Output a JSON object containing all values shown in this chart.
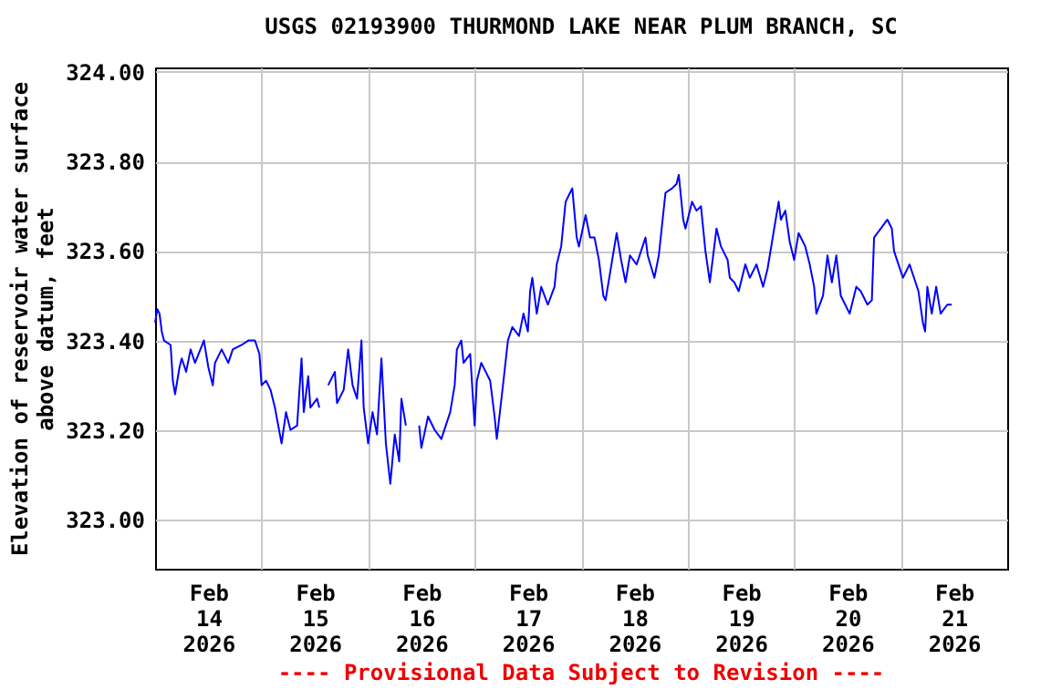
{
  "chart_data": {
    "type": "line",
    "title": "USGS 02193900 THURMOND LAKE NEAR PLUM BRANCH, SC",
    "ylabel": "Elevation of reservoir water surface\nabove datum, feet",
    "annotations": [
      "---- Provisional Data Subject to Revision ----"
    ],
    "x": [
      "2026-02-14T00:00",
      "2026-02-14T00:30",
      "2026-02-14T01:00",
      "2026-02-14T01:30",
      "2026-02-14T02:00",
      "2026-02-14T03:30",
      "2026-02-14T04:00",
      "2026-02-14T04:30",
      "2026-02-14T05:30",
      "2026-02-14T06:00",
      "2026-02-14T07:00",
      "2026-02-14T08:00",
      "2026-02-14T09:00",
      "2026-02-14T11:00",
      "2026-02-14T12:00",
      "2026-02-14T13:00",
      "2026-02-14T13:30",
      "2026-02-14T15:00",
      "2026-02-14T16:30",
      "2026-02-14T17:30",
      "2026-02-14T19:30",
      "2026-02-14T21:00",
      "2026-02-14T22:30",
      "2026-02-14T23:30",
      "2026-02-15T00:00",
      "2026-02-15T01:00",
      "2026-02-15T02:00",
      "2026-02-15T03:00",
      "2026-02-15T04:30",
      "2026-02-15T05:30",
      "2026-02-15T06:30",
      "2026-02-15T08:00",
      "2026-02-15T09:00",
      "2026-02-15T09:30",
      "2026-02-15T10:30",
      "2026-02-15T11:00",
      "2026-02-15T12:30",
      "2026-02-15T13:00",
      "2026-02-15T14:00",
      "2026-02-15T15:00",
      "2026-02-15T16:30",
      "2026-02-15T17:00",
      "2026-02-15T18:30",
      "2026-02-15T19:30",
      "2026-02-15T20:30",
      "2026-02-15T21:30",
      "2026-02-15T22:30",
      "2026-02-15T23:00",
      "2026-02-16T00:00",
      "2026-02-16T01:00",
      "2026-02-16T02:00",
      "2026-02-16T03:00",
      "2026-02-16T04:00",
      "2026-02-16T05:00",
      "2026-02-16T06:00",
      "2026-02-16T07:00",
      "2026-02-16T07:30",
      "2026-02-16T08:30",
      "2026-02-16T10:00",
      "2026-02-16T11:30",
      "2026-02-16T12:00",
      "2026-02-16T13:30",
      "2026-02-16T15:00",
      "2026-02-16T16:30",
      "2026-02-16T18:30",
      "2026-02-16T19:30",
      "2026-02-16T20:00",
      "2026-02-16T21:00",
      "2026-02-16T21:30",
      "2026-02-16T23:00",
      "2026-02-17T00:00",
      "2026-02-17T00:30",
      "2026-02-17T01:30",
      "2026-02-17T03:30",
      "2026-02-17T04:30",
      "2026-02-17T05:00",
      "2026-02-17T06:30",
      "2026-02-17T07:30",
      "2026-02-17T08:30",
      "2026-02-17T10:00",
      "2026-02-17T11:00",
      "2026-02-17T12:00",
      "2026-02-17T12:30",
      "2026-02-17T13:00",
      "2026-02-17T14:00",
      "2026-02-17T15:00",
      "2026-02-17T16:30",
      "2026-02-17T18:00",
      "2026-02-17T18:30",
      "2026-02-17T19:30",
      "2026-02-17T20:30",
      "2026-02-17T21:30",
      "2026-02-17T22:00",
      "2026-02-17T23:00",
      "2026-02-17T23:30",
      "2026-02-18T01:00",
      "2026-02-18T02:00",
      "2026-02-18T03:00",
      "2026-02-18T04:00",
      "2026-02-18T05:00",
      "2026-02-18T05:30",
      "2026-02-18T07:00",
      "2026-02-18T08:00",
      "2026-02-18T09:00",
      "2026-02-18T10:00",
      "2026-02-18T11:00",
      "2026-02-18T12:30",
      "2026-02-18T14:30",
      "2026-02-18T15:00",
      "2026-02-18T16:30",
      "2026-02-18T17:30",
      "2026-02-18T19:00",
      "2026-02-18T20:30",
      "2026-02-18T21:30",
      "2026-02-18T22:00",
      "2026-02-18T23:00",
      "2026-02-18T23:30",
      "2026-02-19T01:00",
      "2026-02-19T02:00",
      "2026-02-19T03:00",
      "2026-02-19T03:30",
      "2026-02-19T04:00",
      "2026-02-19T05:00",
      "2026-02-19T06:30",
      "2026-02-19T07:30",
      "2026-02-19T09:00",
      "2026-02-19T09:30",
      "2026-02-19T10:30",
      "2026-02-19T11:30",
      "2026-02-19T13:00",
      "2026-02-19T14:00",
      "2026-02-19T15:30",
      "2026-02-19T17:00",
      "2026-02-19T18:00",
      "2026-02-19T19:30",
      "2026-02-19T20:30",
      "2026-02-19T21:00",
      "2026-02-19T22:00",
      "2026-02-19T23:00",
      "2026-02-20T00:00",
      "2026-02-20T01:00",
      "2026-02-20T02:30",
      "2026-02-20T03:30",
      "2026-02-20T04:30",
      "2026-02-20T05:00",
      "2026-02-20T06:30",
      "2026-02-20T07:30",
      "2026-02-20T08:30",
      "2026-02-20T09:30",
      "2026-02-20T10:30",
      "2026-02-20T11:30",
      "2026-02-20T12:30",
      "2026-02-20T14:00",
      "2026-02-20T15:00",
      "2026-02-20T16:30",
      "2026-02-20T17:30",
      "2026-02-20T18:00",
      "2026-02-20T19:30",
      "2026-02-20T21:00",
      "2026-02-20T22:00",
      "2026-02-20T22:30",
      "2026-02-20T23:30",
      "2026-02-21T00:30",
      "2026-02-21T02:00",
      "2026-02-21T03:00",
      "2026-02-21T04:00",
      "2026-02-21T05:00",
      "2026-02-21T05:30",
      "2026-02-21T06:00",
      "2026-02-21T07:00",
      "2026-02-21T08:00",
      "2026-02-21T09:00",
      "2026-02-21T10:30",
      "2026-02-21T11:30"
    ],
    "series": [
      {
        "color": "#0000ff",
        "values": [
          323.44,
          323.47,
          323.46,
          323.42,
          323.4,
          323.39,
          323.31,
          323.28,
          323.34,
          323.36,
          323.33,
          323.38,
          323.35,
          323.4,
          323.34,
          323.3,
          323.35,
          323.38,
          323.35,
          323.38,
          323.39,
          323.4,
          323.4,
          323.37,
          323.3,
          323.31,
          323.29,
          323.25,
          323.17,
          323.24,
          323.2,
          323.21,
          323.36,
          323.24,
          323.32,
          323.25,
          323.27,
          323.25,
          null,
          323.3,
          323.33,
          323.26,
          323.29,
          323.38,
          323.3,
          323.27,
          323.4,
          323.25,
          323.17,
          323.24,
          323.19,
          323.36,
          323.17,
          323.08,
          323.19,
          323.13,
          323.27,
          323.21,
          null,
          323.21,
          323.16,
          323.23,
          323.2,
          323.18,
          323.24,
          323.3,
          323.38,
          323.4,
          323.35,
          323.37,
          323.21,
          323.31,
          323.35,
          323.31,
          323.23,
          323.18,
          323.31,
          323.4,
          323.43,
          323.41,
          323.46,
          323.42,
          323.51,
          323.54,
          323.46,
          323.52,
          323.48,
          323.52,
          323.57,
          323.61,
          323.71,
          323.73,
          323.74,
          323.63,
          323.61,
          323.68,
          323.63,
          323.63,
          323.58,
          323.5,
          323.49,
          323.58,
          323.64,
          323.58,
          323.53,
          323.59,
          323.57,
          323.63,
          323.59,
          323.54,
          323.59,
          323.73,
          323.74,
          323.75,
          323.77,
          323.67,
          323.65,
          323.71,
          323.69,
          323.7,
          323.65,
          323.6,
          323.53,
          323.65,
          323.61,
          323.58,
          323.54,
          323.53,
          323.51,
          323.57,
          323.54,
          323.57,
          323.52,
          323.56,
          323.65,
          323.71,
          323.67,
          323.69,
          323.62,
          323.58,
          323.64,
          323.61,
          323.57,
          323.52,
          323.46,
          323.5,
          323.59,
          323.53,
          323.59,
          323.5,
          323.48,
          323.46,
          323.52,
          323.51,
          323.48,
          323.49,
          323.63,
          323.65,
          323.67,
          323.65,
          323.6,
          323.57,
          323.54,
          323.57,
          323.54,
          323.51,
          323.44,
          323.42,
          323.52,
          323.46,
          323.52,
          323.46,
          323.48,
          323.48
        ]
      }
    ],
    "xlim": [
      "2026-02-14",
      "2026-02-22"
    ],
    "xticks": [
      {
        "value": "2026-02-14T12:00",
        "label": "Feb 14 2026"
      },
      {
        "value": "2026-02-15",
        "label": null
      },
      {
        "value": "2026-02-15T12:00",
        "label": "Feb 15 2026"
      },
      {
        "value": "2026-02-16",
        "label": null
      },
      {
        "value": "2026-02-16T12:00",
        "label": "Feb 16 2026"
      },
      {
        "value": "2026-02-17",
        "label": null
      },
      {
        "value": "2026-02-17T12:00",
        "label": "Feb 17 2026"
      },
      {
        "value": "2026-02-18",
        "label": null
      },
      {
        "value": "2026-02-18T12:00",
        "label": "Feb 18 2026"
      },
      {
        "value": "2026-02-19",
        "label": null
      },
      {
        "value": "2026-02-19T12:00",
        "label": "Feb 19 2026"
      },
      {
        "value": "2026-02-20",
        "label": null
      },
      {
        "value": "2026-02-20T12:00",
        "label": "Feb 20 2026"
      },
      {
        "value": "2026-02-21",
        "label": null
      },
      {
        "value": "2026-02-21T12:00",
        "label": "Feb 21 2026"
      }
    ],
    "ylim": [
      322.89,
      324.01
    ],
    "yticks": [
      {
        "value": 323.0,
        "label": "323.00"
      },
      {
        "value": 323.2,
        "label": "323.20"
      },
      {
        "value": 323.4,
        "label": "323.40"
      },
      {
        "value": 323.6,
        "label": "323.60"
      },
      {
        "value": 323.8,
        "label": "323.80"
      },
      {
        "value": 324.0,
        "label": "324.00"
      }
    ],
    "grid": true
  }
}
